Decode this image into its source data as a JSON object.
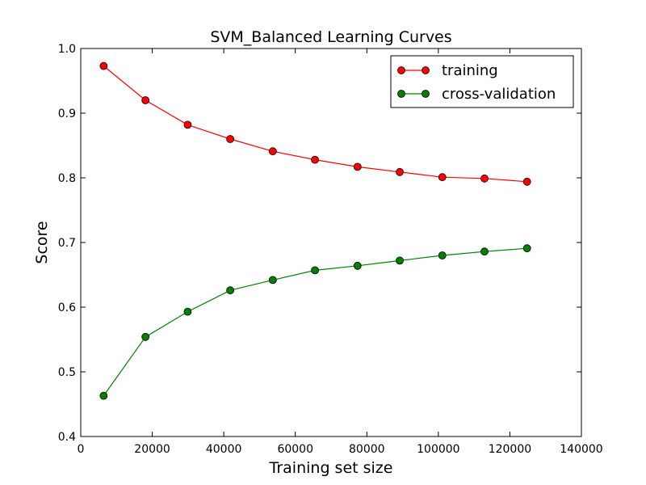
{
  "chart_data": {
    "type": "line",
    "title": "SVM_Balanced Learning Curves",
    "xlabel": "Training set size",
    "ylabel": "Score",
    "xlim": [
      0,
      140000
    ],
    "ylim": [
      0.4,
      1.0
    ],
    "x_ticks": [
      0,
      20000,
      40000,
      60000,
      80000,
      100000,
      120000,
      140000
    ],
    "x_tick_labels": [
      "0",
      "20000",
      "40000",
      "60000",
      "80000",
      "100000",
      "120000",
      "140000"
    ],
    "y_ticks": [
      0.4,
      0.5,
      0.6,
      0.7,
      0.8,
      0.9,
      1.0
    ],
    "y_tick_labels": [
      "0.4",
      "0.5",
      "0.6",
      "0.7",
      "0.8",
      "0.9",
      "1.0"
    ],
    "grid": false,
    "legend_position": "top-right",
    "x": [
      6400,
      18100,
      29900,
      41800,
      53700,
      65500,
      77400,
      89200,
      101100,
      112900,
      124800
    ],
    "series": [
      {
        "name": "training",
        "color": "#ff0000",
        "marker_color": "#ff0000",
        "values": [
          0.973,
          0.92,
          0.882,
          0.86,
          0.841,
          0.828,
          0.817,
          0.809,
          0.801,
          0.799,
          0.794
        ]
      },
      {
        "name": "cross-validation",
        "color": "#008000",
        "marker_color": "#008000",
        "values": [
          0.463,
          0.554,
          0.593,
          0.626,
          0.642,
          0.657,
          0.664,
          0.672,
          0.68,
          0.686,
          0.691
        ]
      }
    ]
  }
}
